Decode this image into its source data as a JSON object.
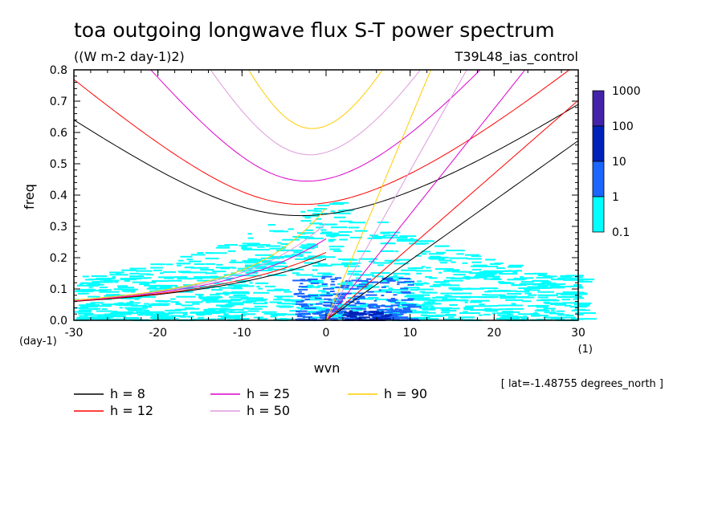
{
  "header": {
    "title": "toa outgoing longwave flux S-T power spectrum",
    "units": "((W m-2 day-1)2)",
    "run": "T39L48_ias_control",
    "lat_note": "[ lat=-1.48755 degrees_north ]"
  },
  "chart_data": {
    "type": "heatmap",
    "title": "toa outgoing longwave flux S-T power spectrum",
    "xlabel": "wvn",
    "ylabel": "freq",
    "x_unit": "(1)",
    "y_unit": "(day-1)",
    "xlim": [
      -30,
      30
    ],
    "ylim": [
      0,
      0.8
    ],
    "x_ticks": [
      -30,
      -20,
      -10,
      0,
      10,
      20,
      30
    ],
    "x_tick_labels": [
      "-30",
      "-20",
      "-10",
      "0",
      "10",
      "20",
      "30"
    ],
    "y_ticks": [
      0,
      0.1,
      0.2,
      0.3,
      0.4,
      0.5,
      0.6,
      0.7,
      0.8
    ],
    "y_tick_labels": [
      "0.0",
      "0.1",
      "0.2",
      "0.3",
      "0.4",
      "0.5",
      "0.6",
      "0.7",
      "0.8"
    ],
    "colorbar": {
      "labels": [
        "0.1",
        "1",
        "10",
        "100",
        "1000"
      ],
      "colors": [
        "#00ffff",
        "#1a66ff",
        "#0022bb",
        "#4422aa"
      ]
    },
    "shading_summary": [
      {
        "level": "0.1-1",
        "x_range": [
          -30,
          30
        ],
        "y_range": [
          0,
          0.36
        ]
      },
      {
        "level": "1-10",
        "x_range": [
          -4,
          10
        ],
        "y_range": [
          0,
          0.14
        ]
      },
      {
        "level": "10-100",
        "x_range": [
          2,
          7
        ],
        "y_range": [
          0,
          0.03
        ]
      }
    ],
    "dispersion_curves": [
      {
        "label": "h =  8",
        "h": 8,
        "color": "#000000"
      },
      {
        "label": "h = 12",
        "h": 12,
        "color": "#ff0000"
      },
      {
        "label": "h = 25",
        "h": 25,
        "color": "#dd00cc"
      },
      {
        "label": "h = 50",
        "h": 50,
        "color": "#dd99dd"
      },
      {
        "label": "h = 90",
        "h": 90,
        "color": "#ffcc00"
      }
    ]
  },
  "legend": {
    "items": [
      {
        "label": "h =  8",
        "color": "#000000"
      },
      {
        "label": "h = 12",
        "color": "#ff0000"
      },
      {
        "label": "h = 25",
        "color": "#dd00cc"
      },
      {
        "label": "h = 50",
        "color": "#dd99dd"
      },
      {
        "label": "h = 90",
        "color": "#ffcc00"
      }
    ]
  }
}
